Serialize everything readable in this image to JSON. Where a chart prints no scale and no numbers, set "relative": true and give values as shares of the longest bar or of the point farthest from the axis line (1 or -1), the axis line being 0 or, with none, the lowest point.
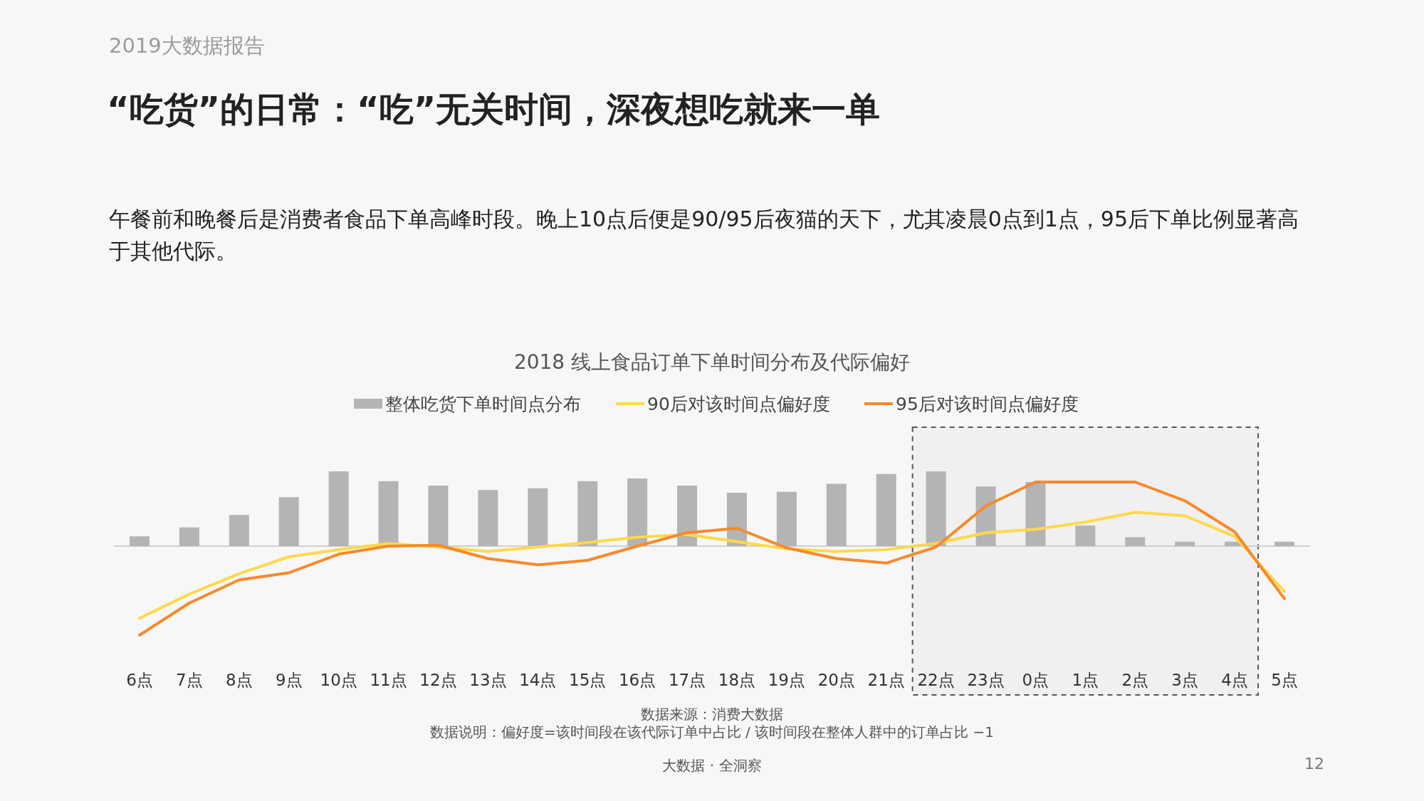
{
  "chart_data": {
    "type": "bar",
    "relative": true,
    "legend": "top",
    "title": "“吃货”的日常：“吃”无关时间，深夜想吃就来一单",
    "subtitle": "午餐前和晚餐后是消费者食品下单高峰时段。晚上10点后便是90/95后夜猫的天下，尤其凌晨0点到1点，95后下单比例显著高于其他代际。",
    "annotations": [
      "2019大数据报告",
      "2018 线上食品订单下单时间分布及代际偏好",
      "数据来源：消费大数据",
      "数据说明：偏好度=该时间段在该代际订单中占比 / 该时间段在整体人群中的订单占比 −1",
      "大数据 · 全洞察",
      "12"
    ],
    "categories": [
      "6点",
      "7点",
      "8点",
      "9点",
      "10点",
      "11点",
      "12点",
      "13点",
      "14点",
      "15点",
      "16点",
      "17点",
      "18点",
      "19点",
      "20点",
      "21点",
      "22点",
      "23点",
      "0点",
      "1点",
      "2点",
      "3点",
      "4点",
      "5点"
    ],
    "series": [
      {
        "name": "整体吃货下单时间点分布",
        "color": "#b4b4b4",
        "values": [
          0.11,
          0.21,
          0.35,
          0.55,
          0.84,
          0.73,
          0.68,
          0.63,
          0.65,
          0.73,
          0.76,
          0.68,
          0.6,
          0.61,
          0.7,
          0.81,
          0.84,
          0.67,
          0.72,
          0.23,
          0.1,
          0.05,
          0.05,
          0.05
        ]
      },
      {
        "name": "90后对该时间点偏好度",
        "type": "line",
        "color": "#fdd94a",
        "values": [
          -0.81,
          -0.54,
          -0.31,
          -0.12,
          -0.04,
          0.03,
          -0.01,
          -0.06,
          -0.01,
          0.04,
          0.1,
          0.13,
          0.05,
          -0.03,
          -0.06,
          -0.04,
          0.03,
          0.15,
          0.19,
          0.27,
          0.38,
          0.34,
          0.11,
          -0.51
        ]
      },
      {
        "name": "95后对该时间点偏好度",
        "type": "line",
        "color": "#f7892b",
        "values": [
          -1,
          -0.64,
          -0.38,
          -0.3,
          -0.09,
          0,
          0.01,
          -0.14,
          -0.21,
          -0.16,
          0,
          0.15,
          0.2,
          -0.02,
          -0.14,
          -0.19,
          -0.01,
          0.45,
          0.72,
          0.72,
          0.72,
          0.51,
          0.16,
          -0.59
        ]
      }
    ],
    "bands": [
      {
        "axis": "x",
        "from": "22点",
        "to": "4点",
        "color": "#555555"
      }
    ]
  }
}
